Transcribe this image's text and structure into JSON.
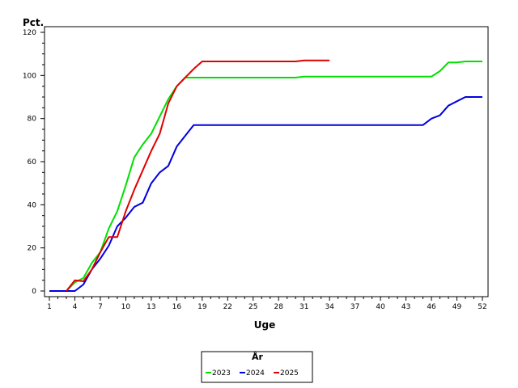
{
  "chart_data": {
    "type": "line",
    "title": "",
    "xlabel": "Uge",
    "ylabel": "Pct.",
    "xlim": [
      1,
      52
    ],
    "ylim": [
      0,
      120
    ],
    "x_ticks": [
      1,
      4,
      7,
      10,
      13,
      16,
      19,
      22,
      25,
      28,
      31,
      34,
      37,
      40,
      43,
      46,
      49,
      52
    ],
    "y_ticks": [
      0,
      20,
      40,
      60,
      80,
      100,
      120
    ],
    "legend_title": "År",
    "legend_position": "bottom-center",
    "series": [
      {
        "name": "2023",
        "color": "#00e000",
        "points": [
          [
            1,
            0
          ],
          [
            2,
            0
          ],
          [
            3,
            0
          ],
          [
            4,
            4
          ],
          [
            5,
            6
          ],
          [
            6,
            13
          ],
          [
            7,
            18
          ],
          [
            8,
            29
          ],
          [
            9,
            37
          ],
          [
            10,
            49
          ],
          [
            11,
            62
          ],
          [
            12,
            68
          ],
          [
            13,
            73
          ],
          [
            14,
            81
          ],
          [
            15,
            89
          ],
          [
            16,
            95
          ],
          [
            17,
            99
          ],
          [
            18,
            99
          ],
          [
            19,
            99
          ],
          [
            20,
            99
          ],
          [
            21,
            99
          ],
          [
            22,
            99
          ],
          [
            23,
            99
          ],
          [
            24,
            99
          ],
          [
            25,
            99
          ],
          [
            26,
            99
          ],
          [
            27,
            99
          ],
          [
            28,
            99
          ],
          [
            29,
            99
          ],
          [
            30,
            99
          ],
          [
            31,
            99.5
          ],
          [
            32,
            99.5
          ],
          [
            33,
            99.5
          ],
          [
            34,
            99.5
          ],
          [
            35,
            99.5
          ],
          [
            36,
            99.5
          ],
          [
            37,
            99.5
          ],
          [
            38,
            99.5
          ],
          [
            39,
            99.5
          ],
          [
            40,
            99.5
          ],
          [
            41,
            99.5
          ],
          [
            42,
            99.5
          ],
          [
            43,
            99.5
          ],
          [
            44,
            99.5
          ],
          [
            45,
            99.5
          ],
          [
            46,
            99.5
          ],
          [
            47,
            102
          ],
          [
            48,
            106
          ],
          [
            49,
            106
          ],
          [
            50,
            106.5
          ],
          [
            51,
            106.5
          ],
          [
            52,
            106.5
          ]
        ]
      },
      {
        "name": "2024",
        "color": "#0000e0",
        "points": [
          [
            1,
            0
          ],
          [
            2,
            0
          ],
          [
            3,
            0
          ],
          [
            4,
            0
          ],
          [
            5,
            3
          ],
          [
            6,
            10
          ],
          [
            7,
            15
          ],
          [
            8,
            21
          ],
          [
            9,
            30
          ],
          [
            10,
            34
          ],
          [
            11,
            39
          ],
          [
            12,
            41
          ],
          [
            13,
            50
          ],
          [
            14,
            55
          ],
          [
            15,
            58
          ],
          [
            16,
            67
          ],
          [
            17,
            72
          ],
          [
            18,
            77
          ],
          [
            19,
            77
          ],
          [
            20,
            77
          ],
          [
            21,
            77
          ],
          [
            22,
            77
          ],
          [
            23,
            77
          ],
          [
            24,
            77
          ],
          [
            25,
            77
          ],
          [
            26,
            77
          ],
          [
            27,
            77
          ],
          [
            28,
            77
          ],
          [
            29,
            77
          ],
          [
            30,
            77
          ],
          [
            31,
            77
          ],
          [
            32,
            77
          ],
          [
            33,
            77
          ],
          [
            34,
            77
          ],
          [
            35,
            77
          ],
          [
            36,
            77
          ],
          [
            37,
            77
          ],
          [
            38,
            77
          ],
          [
            39,
            77
          ],
          [
            40,
            77
          ],
          [
            41,
            77
          ],
          [
            42,
            77
          ],
          [
            43,
            77
          ],
          [
            44,
            77
          ],
          [
            45,
            77
          ],
          [
            46,
            80
          ],
          [
            47,
            81.5
          ],
          [
            48,
            86
          ],
          [
            49,
            88
          ],
          [
            50,
            90
          ],
          [
            51,
            90
          ],
          [
            52,
            90
          ]
        ]
      },
      {
        "name": "2025",
        "color": "#e00000",
        "points": [
          [
            3,
            0
          ],
          [
            4,
            5
          ],
          [
            5,
            4.5
          ],
          [
            6,
            10
          ],
          [
            7,
            18
          ],
          [
            8,
            25
          ],
          [
            9,
            25
          ],
          [
            10,
            37
          ],
          [
            11,
            47
          ],
          [
            12,
            56
          ],
          [
            13,
            65
          ],
          [
            14,
            73
          ],
          [
            15,
            87
          ],
          [
            16,
            95
          ],
          [
            17,
            99
          ],
          [
            18,
            103
          ],
          [
            19,
            106.5
          ],
          [
            20,
            106.5
          ],
          [
            21,
            106.5
          ],
          [
            22,
            106.5
          ],
          [
            23,
            106.5
          ],
          [
            24,
            106.5
          ],
          [
            25,
            106.5
          ],
          [
            26,
            106.5
          ],
          [
            27,
            106.5
          ],
          [
            28,
            106.5
          ],
          [
            29,
            106.5
          ],
          [
            30,
            106.5
          ],
          [
            31,
            107
          ],
          [
            32,
            107
          ],
          [
            33,
            107
          ],
          [
            34,
            107
          ]
        ]
      }
    ]
  }
}
